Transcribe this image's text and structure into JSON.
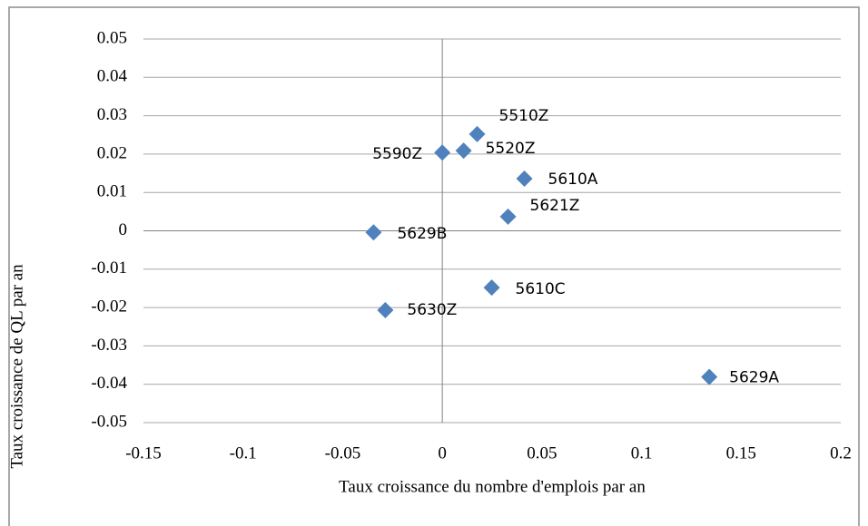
{
  "chart_data": {
    "type": "scatter",
    "xlabel": "Taux croissance du nombre d'emplois par an",
    "ylabel": "Taux croissance de QL par an",
    "series": [
      {
        "name": null,
        "color": "#4f81bd",
        "labels": [
          "5510Z",
          "5590Z",
          "5520Z",
          "5610A",
          "5621Z",
          "5629B",
          "5610C",
          "5630Z",
          "5629A"
        ],
        "x": [
          0.0175,
          0.0,
          0.0107,
          0.0412,
          0.033,
          -0.0345,
          0.0248,
          -0.0286,
          0.134
        ],
        "values": [
          0.0252,
          0.0204,
          0.0209,
          0.0136,
          0.0037,
          -0.0004,
          -0.0148,
          -0.0207,
          -0.0381
        ]
      }
    ],
    "xlim": [
      -0.15,
      0.2
    ],
    "xticks": [
      -0.15,
      -0.1,
      -0.05,
      0,
      0.05,
      0.1,
      0.15,
      0.2
    ],
    "ylim": [
      -0.05,
      0.05
    ],
    "yticks": [
      0.05,
      0.04,
      0.03,
      0.02,
      0.01,
      0,
      -0.01,
      -0.02,
      -0.03,
      -0.04,
      -0.05
    ],
    "grid": true
  }
}
